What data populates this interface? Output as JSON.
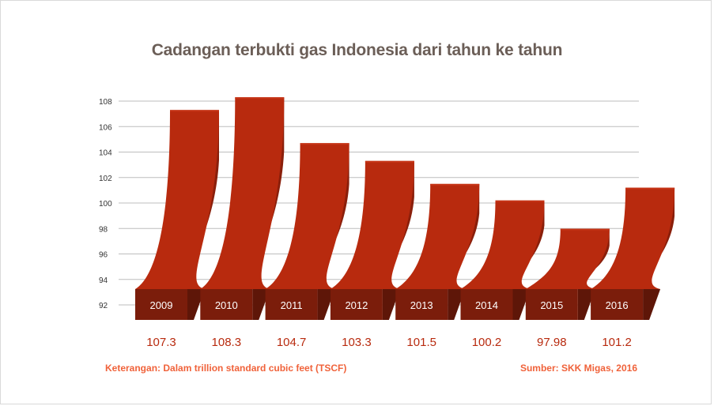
{
  "chart_data": {
    "type": "bar",
    "title": "Cadangan terbukti gas Indonesia dari tahun ke tahun",
    "categories": [
      "2009",
      "2010",
      "2011",
      "2012",
      "2013",
      "2014",
      "2015",
      "2016"
    ],
    "values": [
      107.3,
      108.3,
      104.7,
      103.3,
      101.5,
      100.2,
      97.98,
      101.2
    ],
    "value_labels": [
      "107.3",
      "108.3",
      "104.7",
      "103.3",
      "101.5",
      "100.2",
      "97.98",
      "101.2"
    ],
    "y_ticks": [
      "92",
      "94",
      "96",
      "98",
      "100",
      "102",
      "104",
      "106",
      "108"
    ],
    "ylim": [
      92,
      108
    ],
    "grid": true,
    "xlabel": "",
    "ylabel": "",
    "colors": {
      "bar_front": "#b82a0e",
      "bar_side": "#8a1f0b",
      "label_box": "#7b1d0b",
      "label_side": "#5e1608",
      "value_text": "#b82a0e",
      "grid": "#bdbdbd",
      "footer_text": "#f0623a",
      "title_text": "#6b5e57"
    }
  },
  "footer": {
    "note": "Keterangan: Dalam trillion standard cubic feet (TSCF)",
    "source": "Sumber: SKK Migas, 2016"
  }
}
